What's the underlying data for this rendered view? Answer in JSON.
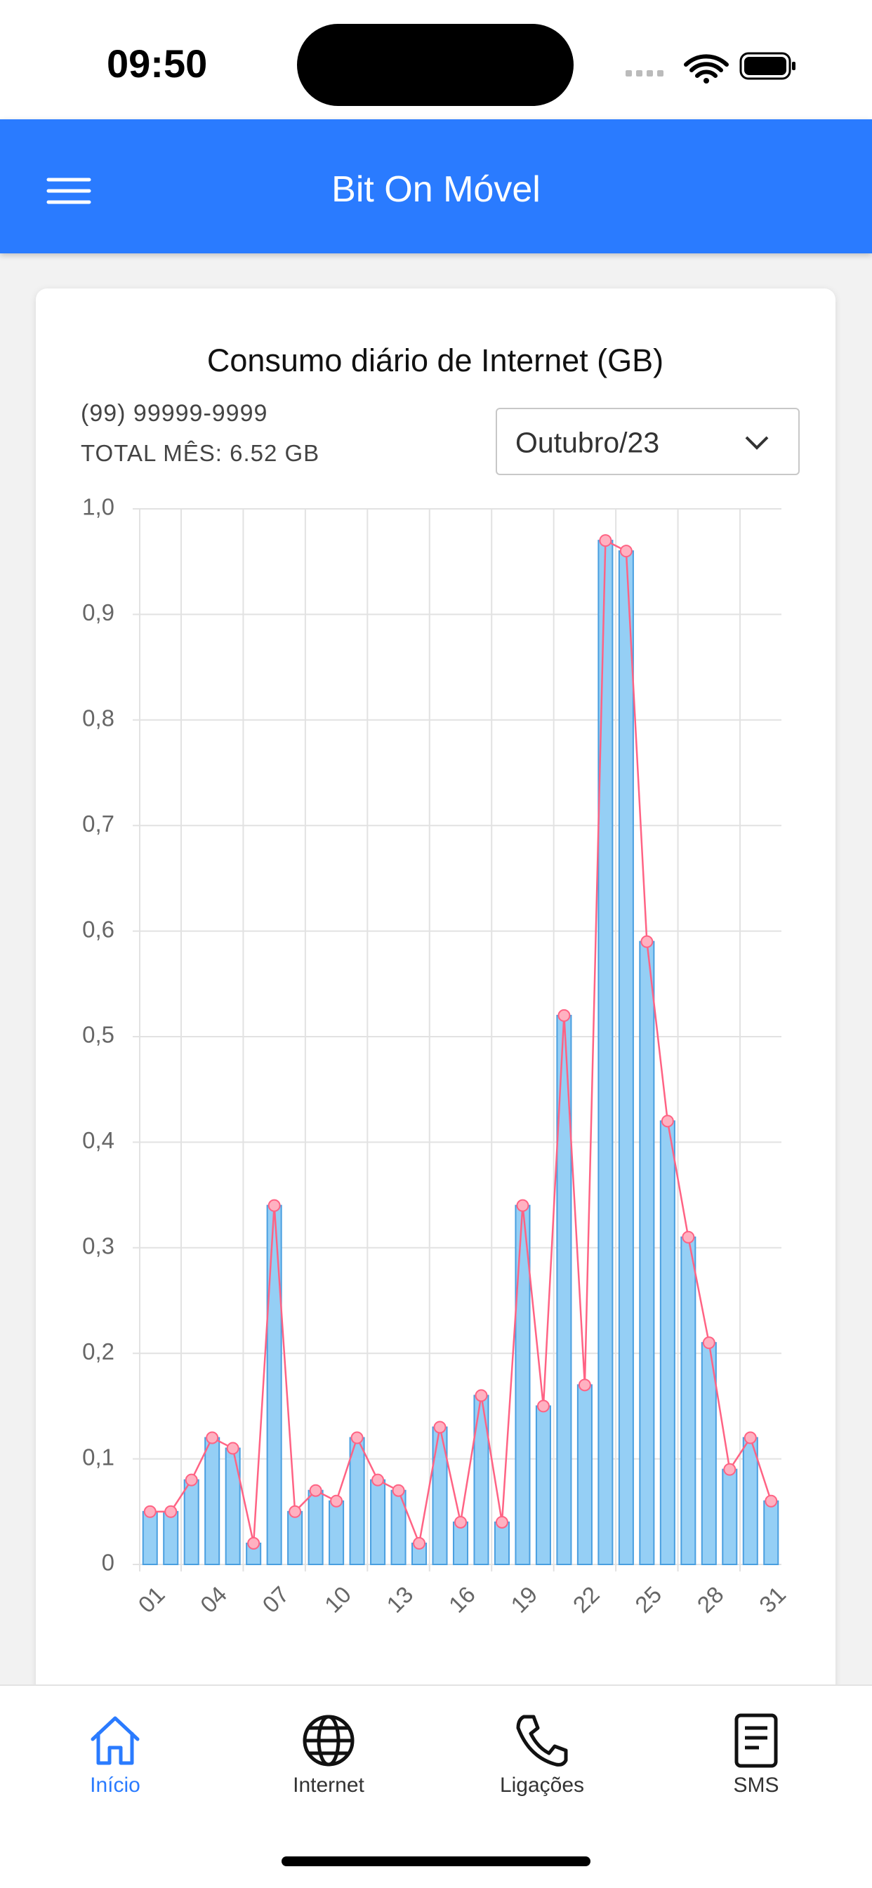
{
  "status_bar": {
    "time": "09:50"
  },
  "app_bar": {
    "title": "Bit On Móvel"
  },
  "card": {
    "phone": "(99) 99999-9999",
    "total": "TOTAL MÊS: 6.52 GB",
    "month_select": "Outubro/23"
  },
  "chart_data": {
    "type": "bar",
    "title": "Consumo diário de Internet (GB)",
    "categories": [
      "01",
      null,
      null,
      "04",
      null,
      null,
      "07",
      null,
      null,
      "10",
      null,
      null,
      "13",
      null,
      null,
      "16",
      null,
      null,
      "19",
      null,
      null,
      "22",
      null,
      null,
      "25",
      null,
      null,
      "28",
      null,
      null,
      "31"
    ],
    "values": [
      0.05,
      0.05,
      0.08,
      0.12,
      0.11,
      0.02,
      0.34,
      0.05,
      0.07,
      0.06,
      0.12,
      0.08,
      0.07,
      0.02,
      0.13,
      0.04,
      0.16,
      0.04,
      0.34,
      0.15,
      0.52,
      0.17,
      0.97,
      0.96,
      0.59,
      0.42,
      0.31,
      0.21,
      0.09,
      0.12,
      0.06
    ],
    "color": "#95cff5",
    "line_color": "#ff6384",
    "ylim": [
      0,
      1
    ],
    "yticks": [
      0,
      {
        "value": 0.1,
        "label": "0,1"
      },
      {
        "value": 0.2,
        "label": "0,2"
      },
      {
        "value": 0.3,
        "label": "0,3"
      },
      {
        "value": 0.4,
        "label": "0,4"
      },
      {
        "value": 0.5,
        "label": "0,5"
      },
      {
        "value": 0.6,
        "label": "0,6"
      },
      {
        "value": 0.7,
        "label": "0,7"
      },
      {
        "value": 0.8,
        "label": "0,8"
      },
      {
        "value": 0.9,
        "label": "0,9"
      },
      {
        "value": 1,
        "label": "1,0"
      }
    ],
    "grid": true
  },
  "nav": {
    "items": [
      "Início",
      "Internet",
      "Ligações",
      "SMS"
    ]
  }
}
